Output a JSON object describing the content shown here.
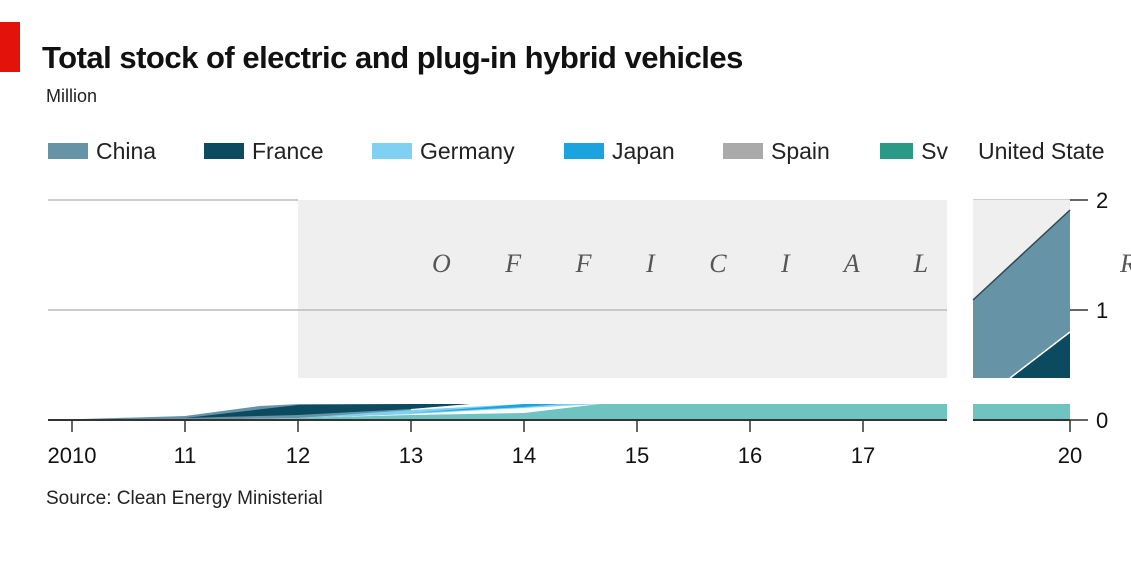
{
  "header": {
    "title": "Total stock of electric and plug-in hybrid vehicles",
    "subtitle": "Million"
  },
  "source": "Source: Clean Energy Ministerial",
  "colors": {
    "accent_tab": "#e3120b",
    "target_band": "#efefef",
    "gridline": "#bbbbbb"
  },
  "legend": [
    {
      "label": "China",
      "color": "#6694a6"
    },
    {
      "label": "France",
      "color": "#0c4a60"
    },
    {
      "label": "Germany",
      "color": "#7fd0f2"
    },
    {
      "label": "Japan",
      "color": "#1aa3dc"
    },
    {
      "label": "Spain",
      "color": "#aaaaaa"
    },
    {
      "label": "Sv",
      "color": "#2a9a86"
    },
    {
      "label": "United State",
      "color": "#6fc3c0"
    }
  ],
  "annotation": {
    "band_label": "O F F I C I A L   T A R G E"
  },
  "chart_data": {
    "type": "area",
    "title": "Total stock of electric and plug-in hybrid vehicles",
    "ylabel": "Million",
    "x_tick_labels": [
      "2010",
      "11",
      "12",
      "13",
      "14",
      "15",
      "16",
      "17",
      "20"
    ],
    "y_tick_labels": [
      "0",
      "1",
      "2"
    ],
    "ylim": [
      0,
      2
    ],
    "grid": true,
    "legend_position": "top",
    "series": [
      {
        "name": "United State",
        "values": [
          0.0,
          0.01,
          0.06,
          0.12,
          0.13,
          0.13,
          0.13,
          0.13,
          0.13
        ]
      },
      {
        "name": "China",
        "values": [
          0.0,
          0.02,
          0.08,
          0.13,
          0.13,
          0.13,
          0.13,
          0.13,
          1.9
        ]
      },
      {
        "name": "France",
        "values": [
          0.0,
          0.0,
          0.02,
          0.05,
          0.06,
          0.06,
          0.06,
          0.06,
          0.8
        ]
      }
    ]
  }
}
